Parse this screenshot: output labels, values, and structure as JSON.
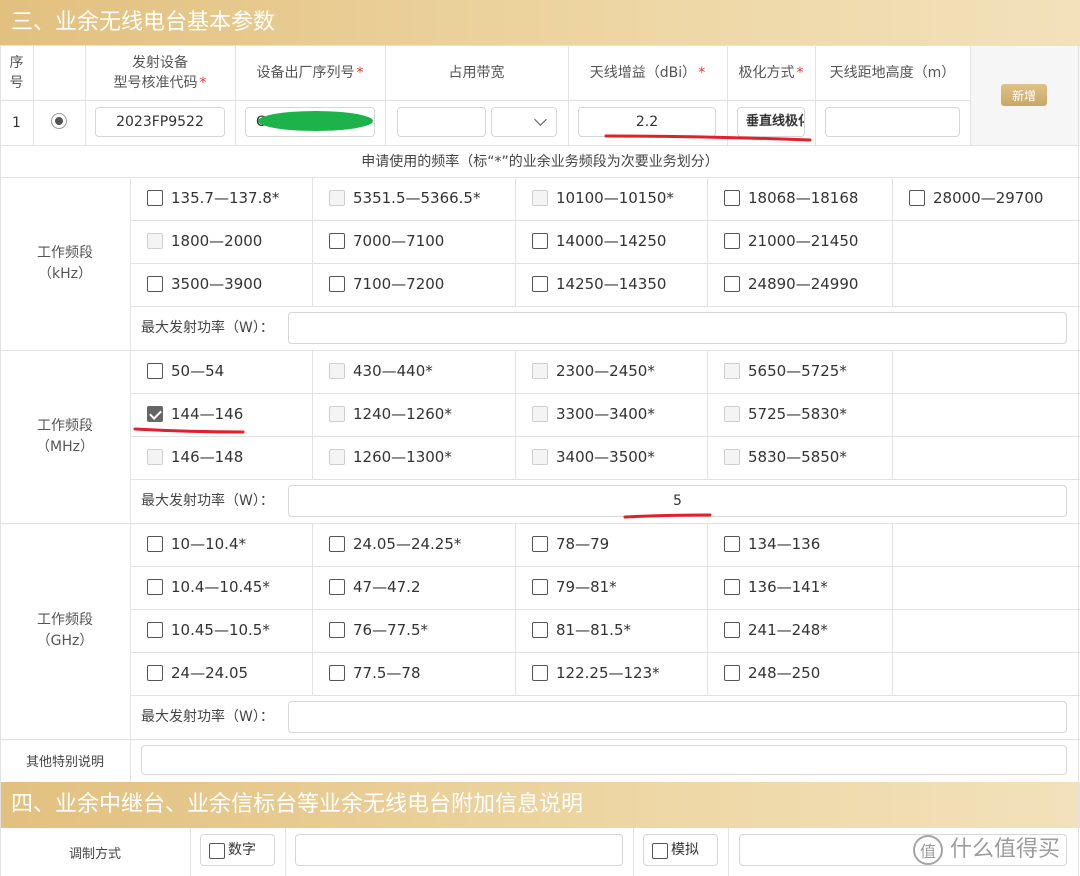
{
  "sections": [
    {
      "title": "三、业余无线电台基本参数"
    },
    {
      "title": "四、业余中继台、业余信标台等业余无线电台附加信息说明"
    }
  ],
  "table": {
    "headers": [
      {
        "lines": [
          "序",
          "号"
        ]
      },
      {
        "lines": [
          "发射设备",
          "型号核准代码"
        ],
        "mark": "*"
      },
      {
        "lines": [
          "设备出厂序列号"
        ],
        "mark": "*"
      },
      {
        "lines": [
          "占用带宽"
        ]
      },
      {
        "lines": [
          "天线增益（dBi）"
        ],
        "mark": "*"
      },
      {
        "lines": [
          "极化方式"
        ],
        "mark": "*"
      },
      {
        "lines": [
          "天线距地高度（m）"
        ]
      }
    ],
    "add_button": "新增",
    "row": {
      "index": "1",
      "approval_code": "2023FP9522",
      "serial": "C",
      "gain": "2.2",
      "polarization": "垂直线极化"
    }
  },
  "freq_note": "申请使用的频率（标“*”的业余业务频段为次要业务划分）",
  "bands": [
    {
      "label_lines": [
        "工作频段",
        "（kHz）"
      ],
      "power_label": "最大发射功率（W）：",
      "rows": [
        [
          {
            "label": "135.7—137.8*"
          },
          {
            "label": "5351.5—5366.5*",
            "disabled": true
          },
          {
            "label": "10100—10150*",
            "disabled": true
          },
          {
            "label": "18068—18168"
          },
          {
            "label": "28000—29700"
          }
        ],
        [
          {
            "label": "1800—2000",
            "disabled": true
          },
          {
            "label": "7000—7100"
          },
          {
            "label": "14000—14250"
          },
          {
            "label": "21000—21450"
          }
        ],
        [
          {
            "label": "3500—3900"
          },
          {
            "label": "7100—7200"
          },
          {
            "label": "14250—14350"
          },
          {
            "label": "24890—24990"
          }
        ]
      ]
    },
    {
      "label_lines": [
        "工作频段",
        "（MHz）"
      ],
      "power_label": "最大发射功率（W）：",
      "power_value": "5",
      "rows": [
        [
          {
            "label": "50—54"
          },
          {
            "label": "430—440*",
            "disabled": true
          },
          {
            "label": "2300—2450*",
            "disabled": true
          },
          {
            "label": "5650—5725*",
            "disabled": true
          }
        ],
        [
          {
            "label": "144—146",
            "checked": true
          },
          {
            "label": "1240—1260*",
            "disabled": true
          },
          {
            "label": "3300—3400*",
            "disabled": true
          },
          {
            "label": "5725—5830*",
            "disabled": true
          }
        ],
        [
          {
            "label": "146—148",
            "disabled": true
          },
          {
            "label": "1260—1300*",
            "disabled": true
          },
          {
            "label": "3400—3500*",
            "disabled": true
          },
          {
            "label": "5830—5850*",
            "disabled": true
          }
        ]
      ]
    },
    {
      "label_lines": [
        "工作频段",
        "（GHz）"
      ],
      "power_label": "最大发射功率（W）：",
      "rows": [
        [
          {
            "label": "10—10.4*"
          },
          {
            "label": "24.05—24.25*"
          },
          {
            "label": "78—79"
          },
          {
            "label": "134—136"
          }
        ],
        [
          {
            "label": "10.4—10.45*"
          },
          {
            "label": "47—47.2"
          },
          {
            "label": "79—81*"
          },
          {
            "label": "136—141*"
          }
        ],
        [
          {
            "label": "10.45—10.5*"
          },
          {
            "label": "76—77.5*"
          },
          {
            "label": "81—81.5*"
          },
          {
            "label": "241—248*"
          }
        ],
        [
          {
            "label": "24—24.05"
          },
          {
            "label": "77.5—78"
          },
          {
            "label": "122.25—123*"
          },
          {
            "label": "248—250"
          }
        ]
      ]
    }
  ],
  "other": {
    "label": "其他特别说明"
  },
  "modulation": {
    "label": "调制方式",
    "options": [
      {
        "label": "数字"
      },
      {
        "label": "模拟"
      }
    ]
  },
  "watermark": {
    "logo": "值",
    "text": "什么值得买"
  }
}
